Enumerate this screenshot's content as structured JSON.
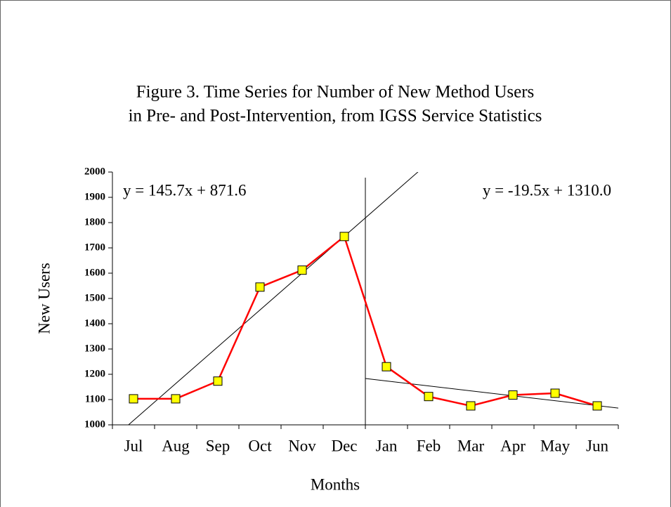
{
  "chart_data": {
    "type": "line",
    "title": [
      "Figure 3. Time Series for Number of New Method Users",
      "in Pre- and Post-Intervention, from IGSS Service Statistics"
    ],
    "xlabel": "Months",
    "ylabel": "New Users",
    "categories": [
      "Jul",
      "Aug",
      "Sep",
      "Oct",
      "Nov",
      "Dec",
      "Jan",
      "Feb",
      "Mar",
      "Apr",
      "May",
      "Jun"
    ],
    "series": [
      {
        "name": "New Users",
        "color": "#ff0000",
        "marker_color": "#ffff00",
        "values": [
          1103,
          1103,
          1173,
          1545,
          1612,
          1745,
          1230,
          1112,
          1075,
          1118,
          1125,
          1075
        ]
      }
    ],
    "ylim": [
      1000,
      2000
    ],
    "yticks": [
      1000,
      1100,
      1200,
      1300,
      1400,
      1500,
      1600,
      1700,
      1800,
      1900,
      2000
    ],
    "trendlines": [
      {
        "label": "y = 145.7x + 871.6",
        "slope": 145.7,
        "intercept": 871.6,
        "x_from": 0.5,
        "x_to": 12.5
      },
      {
        "label": "y = -19.5x + 1310.0",
        "slope": -19.5,
        "intercept": 1310.0,
        "x_from": 6.5,
        "x_to": 12.5
      }
    ]
  }
}
